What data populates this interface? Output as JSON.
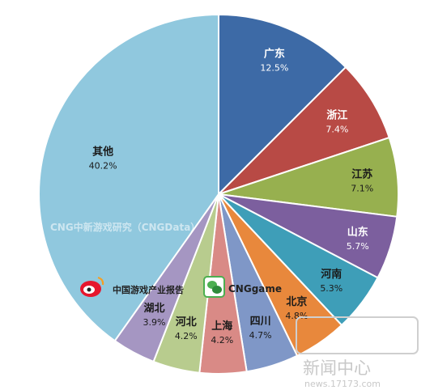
{
  "chart_data": {
    "type": "pie",
    "categories": [
      "广东",
      "浙江",
      "江苏",
      "山东",
      "河南",
      "北京",
      "四川",
      "上海",
      "河北",
      "湖北",
      "其他"
    ],
    "values": [
      12.5,
      7.4,
      7.1,
      5.7,
      5.3,
      4.8,
      4.7,
      4.2,
      4.2,
      3.9,
      40.2
    ],
    "value_labels": [
      "12.5%",
      "7.4%",
      "7.1%",
      "5.7%",
      "5.3%",
      "4.8%",
      "4.7%",
      "4.2%",
      "4.2%",
      "3.9%",
      "40.2%"
    ],
    "colors": [
      "#3d6aa6",
      "#b84a45",
      "#97b04f",
      "#7c5f9e",
      "#3e9eb8",
      "#e8883c",
      "#7f97c7",
      "#d98a86",
      "#b8cc8e",
      "#a596c2",
      "#90c8de"
    ],
    "start_angle_deg": 0,
    "direction": "clockwise"
  },
  "watermark": {
    "credit": "CNG中新游戏研究（CNGData）",
    "weibo_label": "中国游戏产业报告",
    "wechat_label": "CNGgame"
  },
  "site_logo": {
    "brand": "新闻中心",
    "url": "news.17173.com"
  }
}
